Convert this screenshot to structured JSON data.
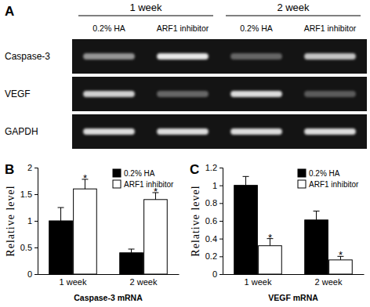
{
  "panel_a": {
    "panel": "A",
    "groups": [
      "1 week",
      "2 week"
    ],
    "lanes": [
      "0.2% HA",
      "ARF1 inhibitor",
      "0.2% HA",
      "ARF1 inhibitor"
    ],
    "rows": [
      {
        "label": "Caspase-3",
        "bands": [
          0.55,
          0.9,
          0.35,
          0.75
        ]
      },
      {
        "label": "VEGF",
        "bands": [
          0.8,
          0.35,
          0.85,
          0.3
        ]
      },
      {
        "label": "GAPDH",
        "bands": [
          0.85,
          0.85,
          0.85,
          0.85
        ]
      }
    ]
  },
  "chart_data": [
    {
      "panel": "B",
      "type": "bar",
      "x_label": "Caspase-3 mRNA",
      "y_label": "Relative level",
      "categories": [
        "1 week",
        "2 week"
      ],
      "series": [
        {
          "name": "0.2% HA",
          "color": "#000000",
          "values": [
            1.0,
            0.4
          ],
          "errors": [
            0.25,
            0.07
          ]
        },
        {
          "name": "ARF1 inhibitor",
          "color": "#ffffff",
          "values": [
            1.6,
            1.4
          ],
          "errors": [
            0.18,
            0.13
          ],
          "annotations": [
            "*",
            "*"
          ]
        }
      ],
      "ylim": [
        0,
        2
      ],
      "yticks": [
        0,
        0.5,
        1,
        1.5,
        2
      ],
      "grid": false,
      "legend": "upper right"
    },
    {
      "panel": "C",
      "type": "bar",
      "x_label": "VEGF mRNA",
      "y_label": "Relative level",
      "categories": [
        "1 week",
        "2 week"
      ],
      "series": [
        {
          "name": "0.2% HA",
          "color": "#000000",
          "values": [
            1.0,
            0.61
          ],
          "errors": [
            0.1,
            0.1
          ]
        },
        {
          "name": "ARF1 inhibitor",
          "color": "#ffffff",
          "values": [
            0.32,
            0.16
          ],
          "errors": [
            0.08,
            0.04
          ],
          "annotations": [
            "*",
            "*"
          ]
        }
      ],
      "ylim": [
        0,
        1.2
      ],
      "yticks": [
        0,
        0.2,
        0.4,
        0.6,
        0.8,
        1,
        1.2
      ],
      "grid": false,
      "legend": "upper right"
    }
  ]
}
